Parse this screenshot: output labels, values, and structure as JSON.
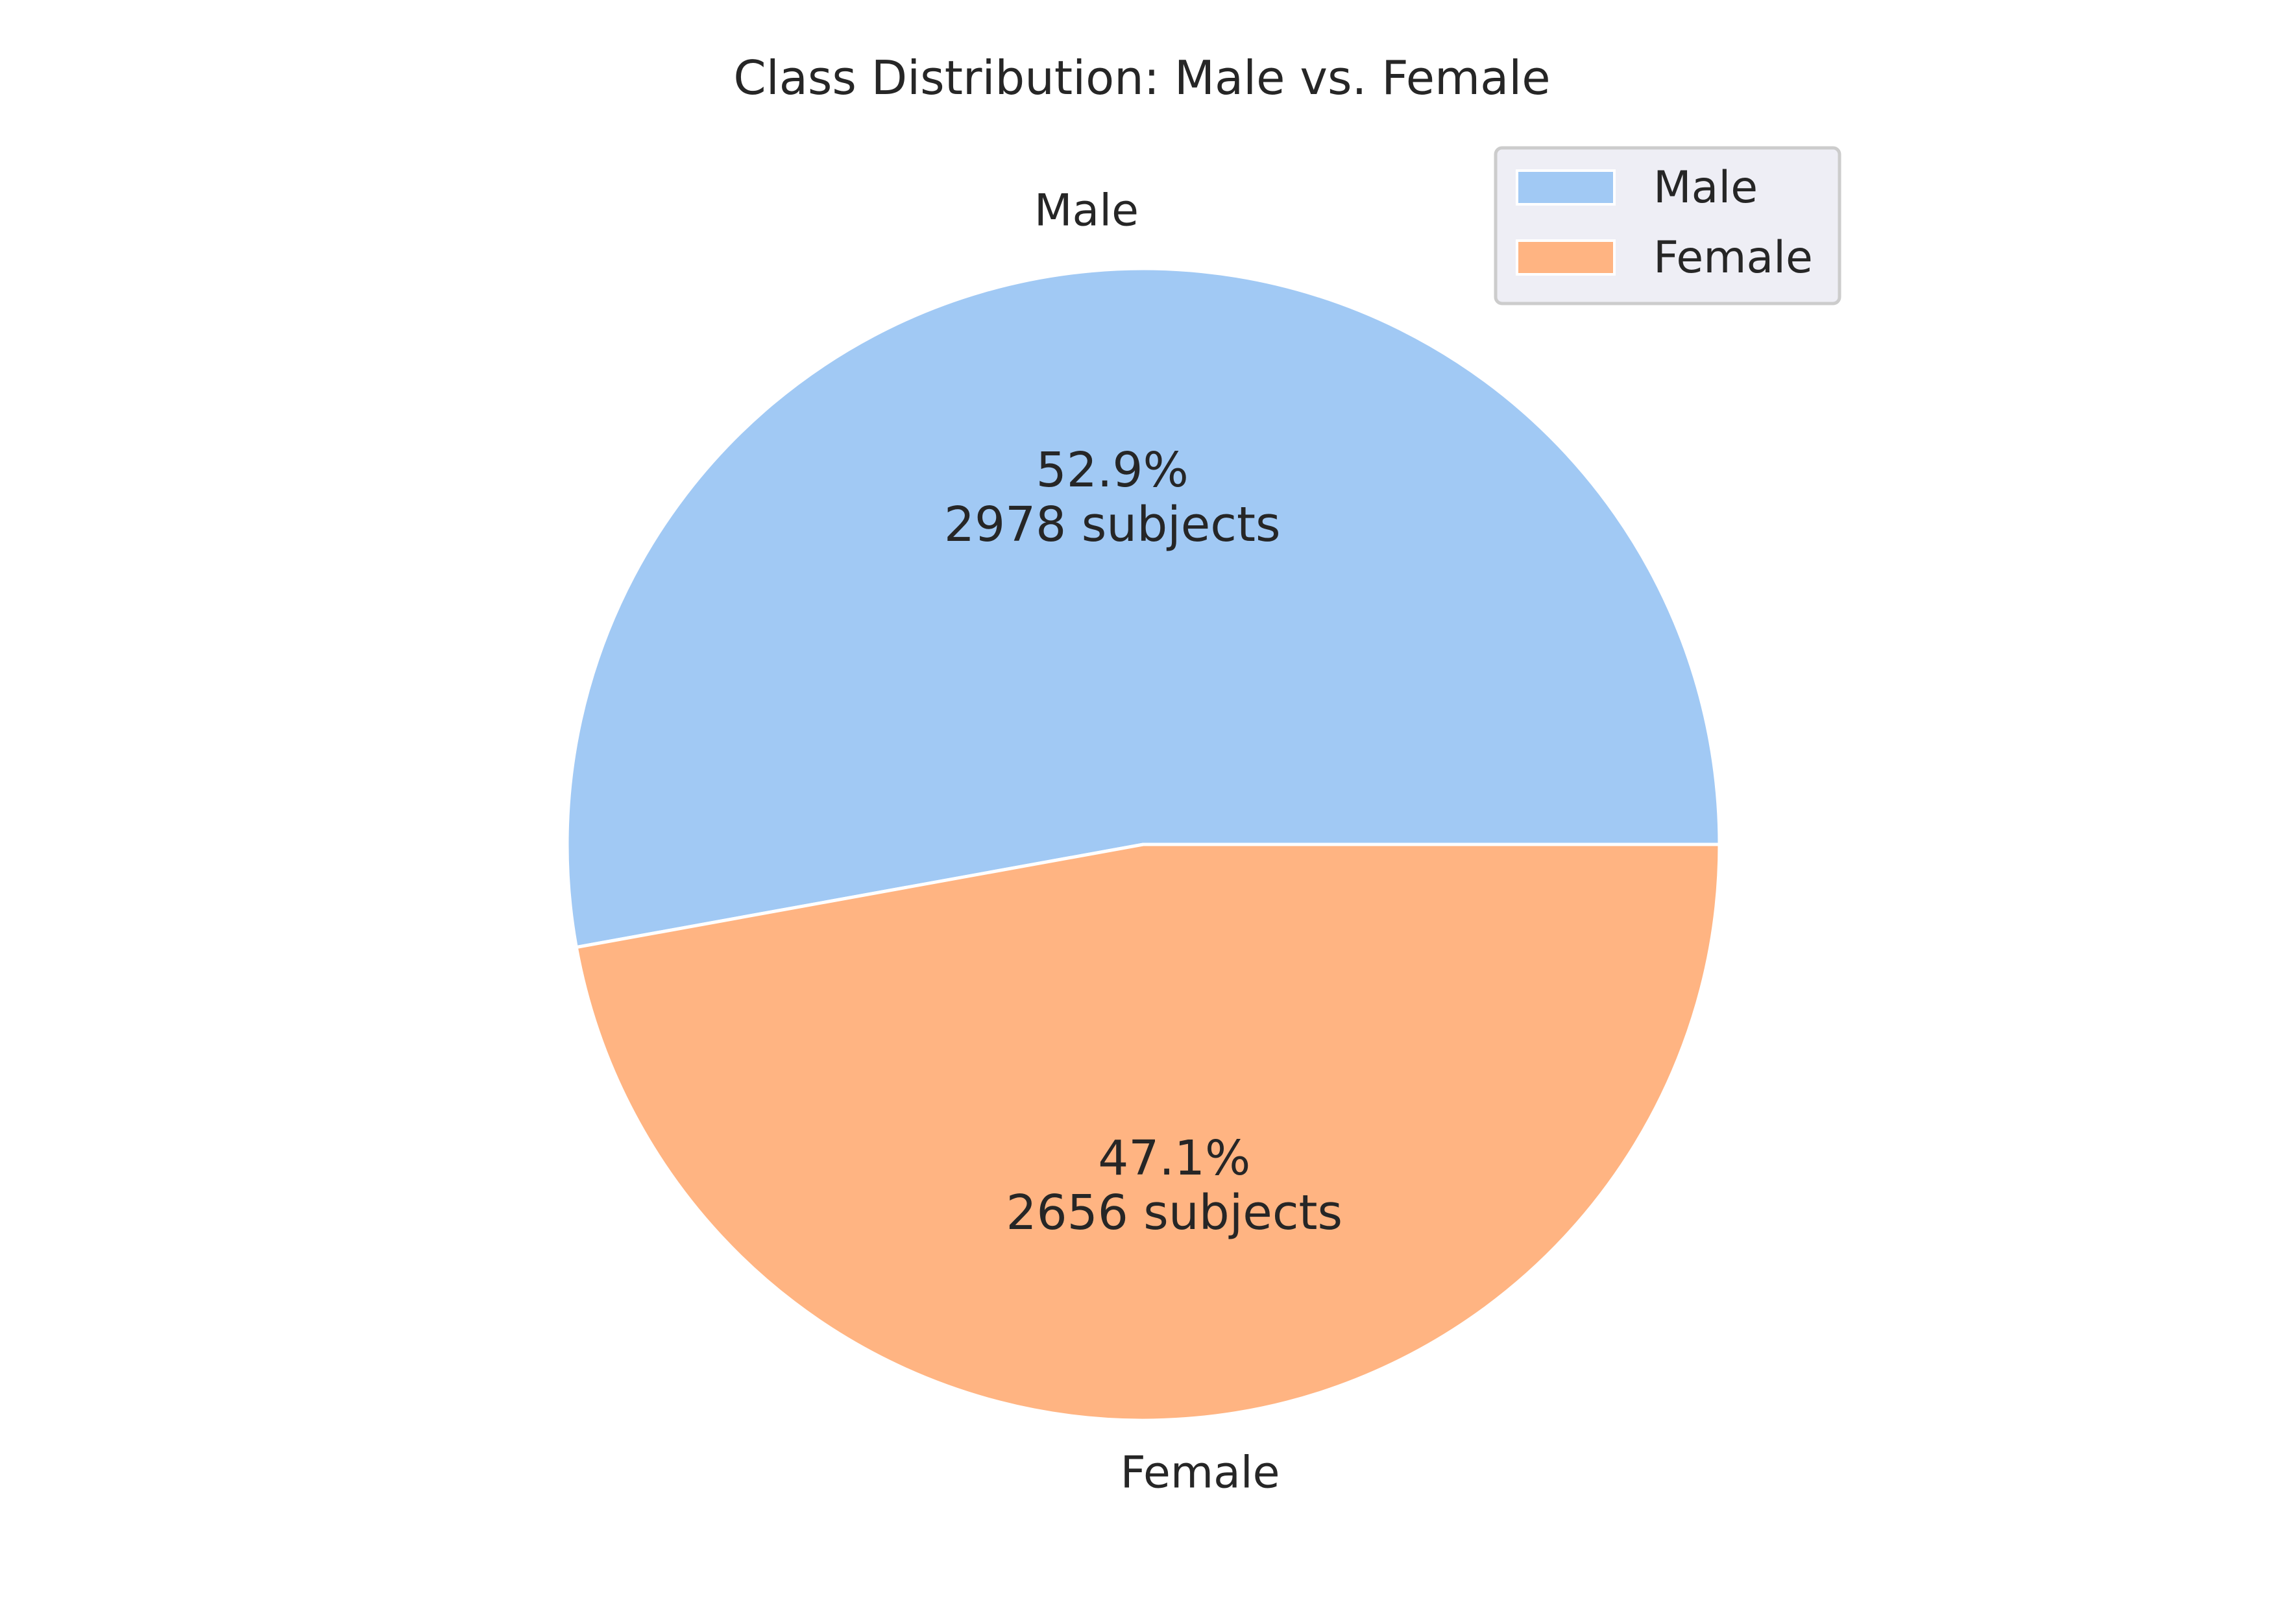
{
  "chart_data": {
    "type": "pie",
    "title": "Class Distribution: Male vs. Female",
    "slices": [
      {
        "label": "Male",
        "value": 2978,
        "percent_label": "52.9%",
        "count_label": "2978 subjects",
        "color": "#a1c9f4"
      },
      {
        "label": "Female",
        "value": 2656,
        "percent_label": "47.1%",
        "count_label": "2656 subjects",
        "color": "#ffb482"
      }
    ],
    "start_angle_deg": 0,
    "direction": "counterclockwise",
    "legend": {
      "position": "top-right",
      "entries": [
        "Male",
        "Female"
      ]
    },
    "edge_color": "#ffffff"
  }
}
